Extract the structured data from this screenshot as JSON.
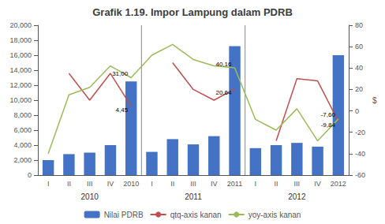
{
  "chart_data": {
    "type": "bar",
    "title": "Grafik 1.19. Impor Lampung dalam PDRB",
    "categories": [
      "I",
      "II",
      "III",
      "IV",
      "2010",
      "I",
      "II",
      "III",
      "IV",
      "2011",
      "I",
      "II",
      "III",
      "IV",
      "2012"
    ],
    "series": [
      {
        "name": "Nilai PDRB",
        "type": "bar",
        "color": "#4472C4",
        "values": [
          2000,
          2800,
          3000,
          4000,
          12500,
          3100,
          4800,
          4100,
          5200,
          17200,
          3600,
          4000,
          4300,
          3800,
          16000
        ]
      },
      {
        "name": "qtq-axis kanan",
        "type": "line",
        "axis": "y2",
        "color": "#C0504D",
        "values": [
          null,
          35,
          10,
          35,
          4.45,
          null,
          45,
          20,
          10,
          20.64,
          null,
          -28,
          30,
          28,
          -9.84
        ]
      },
      {
        "name": "yoy-axis kanan",
        "type": "line",
        "axis": "y2",
        "color": "#9BBB59",
        "values": [
          -40,
          15,
          22,
          42,
          31.0,
          52,
          62,
          48,
          42,
          40.16,
          -8,
          -18,
          2,
          -28,
          -7.6
        ]
      }
    ],
    "ylim": [
      0,
      20000
    ],
    "yticks": [
      0,
      2000,
      4000,
      6000,
      8000,
      10000,
      12000,
      14000,
      16000,
      18000,
      20000
    ],
    "y2lim": [
      -60,
      80
    ],
    "y2ticks": [
      -60,
      -40,
      -20,
      0,
      20,
      40,
      60,
      80
    ],
    "y2_label": "$",
    "grid": false,
    "legend": "bottom",
    "annotations": [
      {
        "text": "31,00",
        "x": 4,
        "y": 31.0,
        "axis": "y2"
      },
      {
        "text": "4,45",
        "x": 4,
        "y": 4.45,
        "axis": "y2"
      },
      {
        "text": "40,16",
        "x": 9,
        "y": 40.16,
        "axis": "y2"
      },
      {
        "text": "20,64",
        "x": 9,
        "y": 20.64,
        "axis": "y2"
      },
      {
        "text": "-7,60",
        "x": 14,
        "y": -7.6,
        "axis": "y2"
      },
      {
        "text": "-9,84",
        "x": 14,
        "y": -9.84,
        "axis": "y2"
      }
    ],
    "year_labels": [
      {
        "text": "2010",
        "x": 2
      },
      {
        "text": "2011",
        "x": 7
      },
      {
        "text": "2012",
        "x": 12
      }
    ],
    "dividers": [
      4.5,
      9.5
    ]
  }
}
